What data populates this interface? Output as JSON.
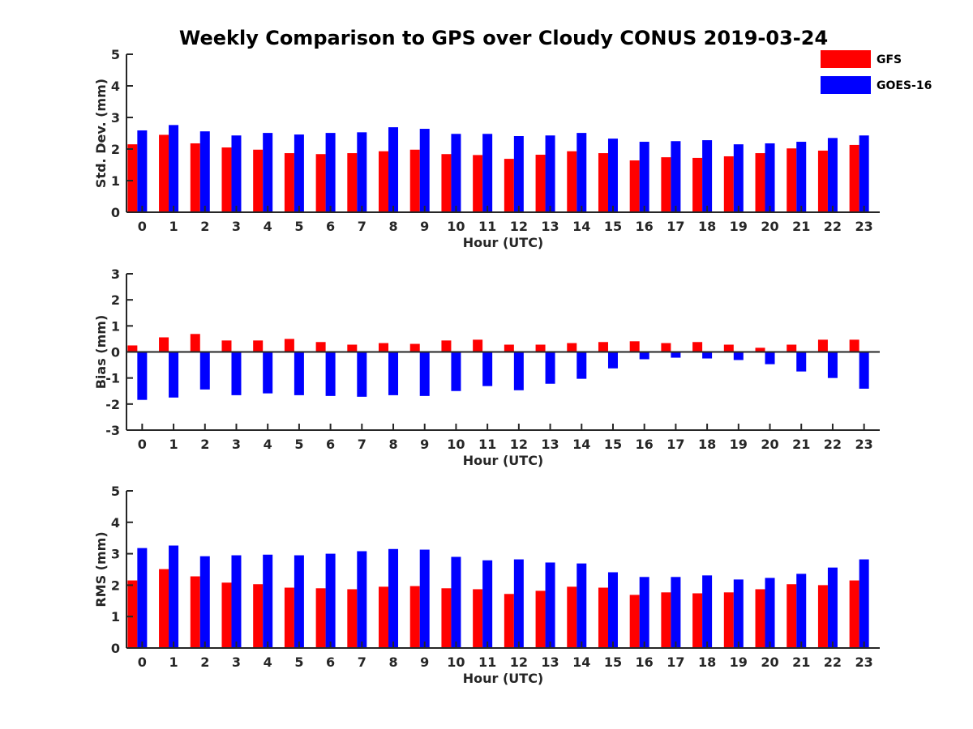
{
  "title": "Weekly Comparison to GPS over Cloudy CONUS 2019-03-24",
  "legend": {
    "position": "top-right",
    "items": [
      {
        "name": "GFS",
        "color": "#ff0000"
      },
      {
        "name": "GOES-16",
        "color": "#0000ff"
      }
    ]
  },
  "chart_data": [
    {
      "type": "bar",
      "xlabel": "Hour (UTC)",
      "ylabel": "Std. Dev. (mm)",
      "ylim": [
        0,
        5
      ],
      "yticks": [
        "0",
        "1",
        "2",
        "3",
        "4",
        "5"
      ],
      "categories": [
        "0",
        "1",
        "2",
        "3",
        "4",
        "5",
        "6",
        "7",
        "8",
        "9",
        "10",
        "11",
        "12",
        "13",
        "14",
        "15",
        "16",
        "17",
        "18",
        "19",
        "20",
        "21",
        "22",
        "23"
      ],
      "grid": false,
      "series": [
        {
          "name": "GFS",
          "color": "#ff0000",
          "values": [
            2.15,
            2.45,
            2.18,
            2.05,
            1.98,
            1.87,
            1.84,
            1.87,
            1.93,
            1.98,
            1.84,
            1.81,
            1.69,
            1.82,
            1.93,
            1.87,
            1.64,
            1.74,
            1.72,
            1.77,
            1.87,
            2.02,
            1.95,
            2.13
          ]
        },
        {
          "name": "GOES-16",
          "color": "#0000ff",
          "values": [
            2.59,
            2.76,
            2.56,
            2.43,
            2.51,
            2.46,
            2.51,
            2.53,
            2.69,
            2.64,
            2.48,
            2.48,
            2.41,
            2.43,
            2.51,
            2.33,
            2.23,
            2.25,
            2.28,
            2.15,
            2.18,
            2.23,
            2.35,
            2.43
          ]
        }
      ]
    },
    {
      "type": "bar",
      "xlabel": "Hour (UTC)",
      "ylabel": "Bias (mm)",
      "ylim": [
        -3,
        3
      ],
      "yticks": [
        "-3",
        "-2",
        "-1",
        "0",
        "1",
        "2",
        "3"
      ],
      "categories": [
        "0",
        "1",
        "2",
        "3",
        "4",
        "5",
        "6",
        "7",
        "8",
        "9",
        "10",
        "11",
        "12",
        "13",
        "14",
        "15",
        "16",
        "17",
        "18",
        "19",
        "20",
        "21",
        "22",
        "23"
      ],
      "grid": false,
      "series": [
        {
          "name": "GFS",
          "color": "#ff0000",
          "values": [
            0.25,
            0.56,
            0.69,
            0.44,
            0.44,
            0.5,
            0.38,
            0.28,
            0.34,
            0.31,
            0.44,
            0.47,
            0.28,
            0.28,
            0.34,
            0.38,
            0.41,
            0.34,
            0.38,
            0.28,
            0.16,
            0.28,
            0.47,
            0.47
          ]
        },
        {
          "name": "GOES-16",
          "color": "#0000ff",
          "values": [
            -1.84,
            -1.75,
            -1.44,
            -1.66,
            -1.59,
            -1.66,
            -1.69,
            -1.72,
            -1.66,
            -1.69,
            -1.5,
            -1.31,
            -1.47,
            -1.22,
            -1.03,
            -0.63,
            -0.28,
            -0.22,
            -0.25,
            -0.31,
            -0.47,
            -0.75,
            -1.0,
            -1.41
          ]
        }
      ]
    },
    {
      "type": "bar",
      "xlabel": "Hour (UTC)",
      "ylabel": "RMS (mm)",
      "ylim": [
        0,
        5
      ],
      "yticks": [
        "0",
        "1",
        "2",
        "3",
        "4",
        "5"
      ],
      "categories": [
        "0",
        "1",
        "2",
        "3",
        "4",
        "5",
        "6",
        "7",
        "8",
        "9",
        "10",
        "11",
        "12",
        "13",
        "14",
        "15",
        "16",
        "17",
        "18",
        "19",
        "20",
        "21",
        "22",
        "23"
      ],
      "grid": false,
      "series": [
        {
          "name": "GFS",
          "color": "#ff0000",
          "values": [
            2.15,
            2.51,
            2.28,
            2.08,
            2.03,
            1.92,
            1.9,
            1.87,
            1.95,
            1.97,
            1.9,
            1.87,
            1.72,
            1.82,
            1.95,
            1.92,
            1.69,
            1.77,
            1.74,
            1.77,
            1.87,
            2.03,
            2.0,
            2.15
          ]
        },
        {
          "name": "GOES-16",
          "color": "#0000ff",
          "values": [
            3.18,
            3.26,
            2.92,
            2.95,
            2.97,
            2.95,
            3.0,
            3.08,
            3.15,
            3.13,
            2.9,
            2.79,
            2.82,
            2.72,
            2.69,
            2.41,
            2.26,
            2.26,
            2.31,
            2.18,
            2.23,
            2.36,
            2.56,
            2.82
          ]
        }
      ]
    }
  ]
}
